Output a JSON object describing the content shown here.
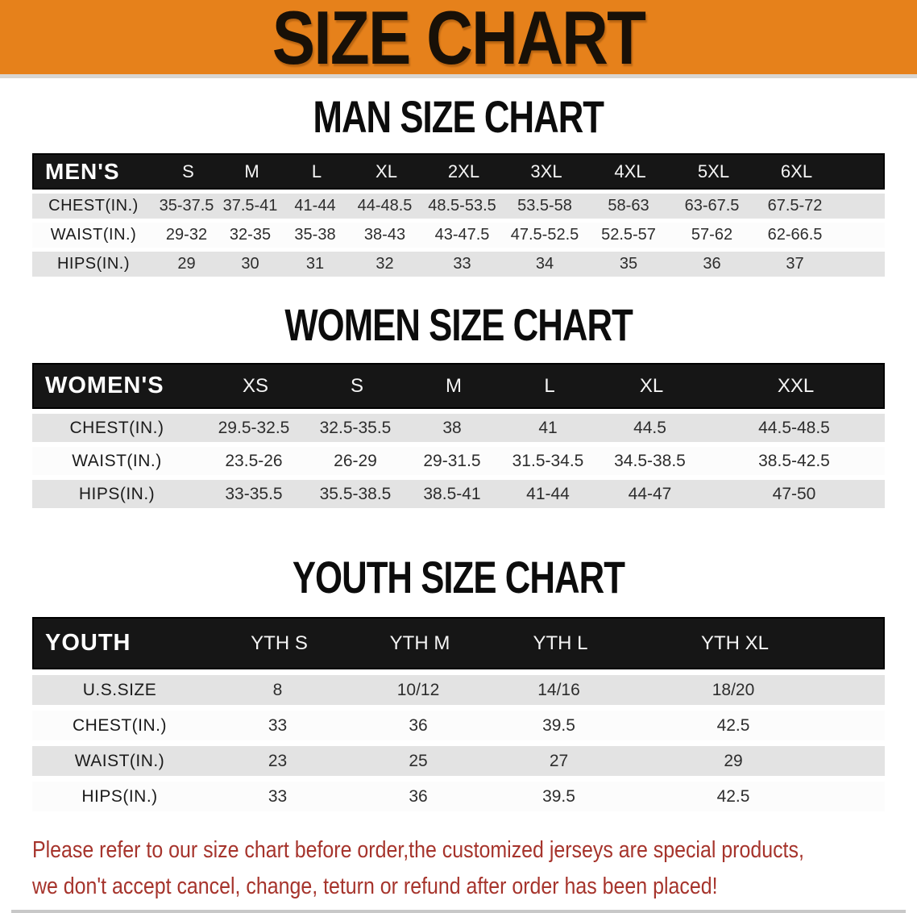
{
  "banner": {
    "title": "SIZE CHART",
    "bg_color": "#e6811b",
    "text_color": "#181007"
  },
  "chart_data": [
    {
      "type": "table",
      "title": "MAN SIZE CHART",
      "columns": [
        "MEN'S",
        "S",
        "M",
        "L",
        "XL",
        "2XL",
        "3XL",
        "4XL",
        "5XL",
        "6XL"
      ],
      "rows": [
        [
          "CHEST(IN.)",
          "35-37.5",
          "37.5-41",
          "41-44",
          "44-48.5",
          "48.5-53.5",
          "53.5-58",
          "58-63",
          "63-67.5",
          "67.5-72"
        ],
        [
          "WAIST(IN.)",
          "29-32",
          "32-35",
          "35-38",
          "38-43",
          "43-47.5",
          "47.5-52.5",
          "52.5-57",
          "57-62",
          "62-66.5"
        ],
        [
          "HIPS(IN.)",
          "29",
          "30",
          "31",
          "32",
          "33",
          "34",
          "35",
          "36",
          "37"
        ]
      ]
    },
    {
      "type": "table",
      "title": "WOMEN SIZE CHART",
      "columns": [
        "WOMEN'S",
        "XS",
        "S",
        "M",
        "L",
        "XL",
        "XXL"
      ],
      "rows": [
        [
          "CHEST(IN.)",
          "29.5-32.5",
          "32.5-35.5",
          "38",
          "41",
          "44.5",
          "44.5-48.5"
        ],
        [
          "WAIST(IN.)",
          "23.5-26",
          "26-29",
          "29-31.5",
          "31.5-34.5",
          "34.5-38.5",
          "38.5-42.5"
        ],
        [
          "HIPS(IN.)",
          "33-35.5",
          "35.5-38.5",
          "38.5-41",
          "41-44",
          "44-47",
          "47-50"
        ]
      ]
    },
    {
      "type": "table",
      "title": "YOUTH SIZE CHART",
      "columns": [
        "YOUTH",
        "YTH S",
        "YTH M",
        "YTH L",
        "YTH XL"
      ],
      "rows": [
        [
          "U.S.SIZE",
          "8",
          "10/12",
          "14/16",
          "18/20"
        ],
        [
          "CHEST(IN.)",
          "33",
          "36",
          "39.5",
          "42.5"
        ],
        [
          "WAIST(IN.)",
          "23",
          "25",
          "27",
          "29"
        ],
        [
          "HIPS(IN.)",
          "33",
          "36",
          "39.5",
          "42.5"
        ]
      ]
    }
  ],
  "disclaimer": {
    "line1": "Please refer to our size chart before order,the customized jerseys are special products,",
    "line2": "we don't accept cancel, change, teturn or refund after order has been placed!",
    "color": "#a6342c"
  },
  "colors": {
    "header_bar": "#161616",
    "row_gray": "#e3e3e3",
    "row_white": "#fcfcfc"
  }
}
